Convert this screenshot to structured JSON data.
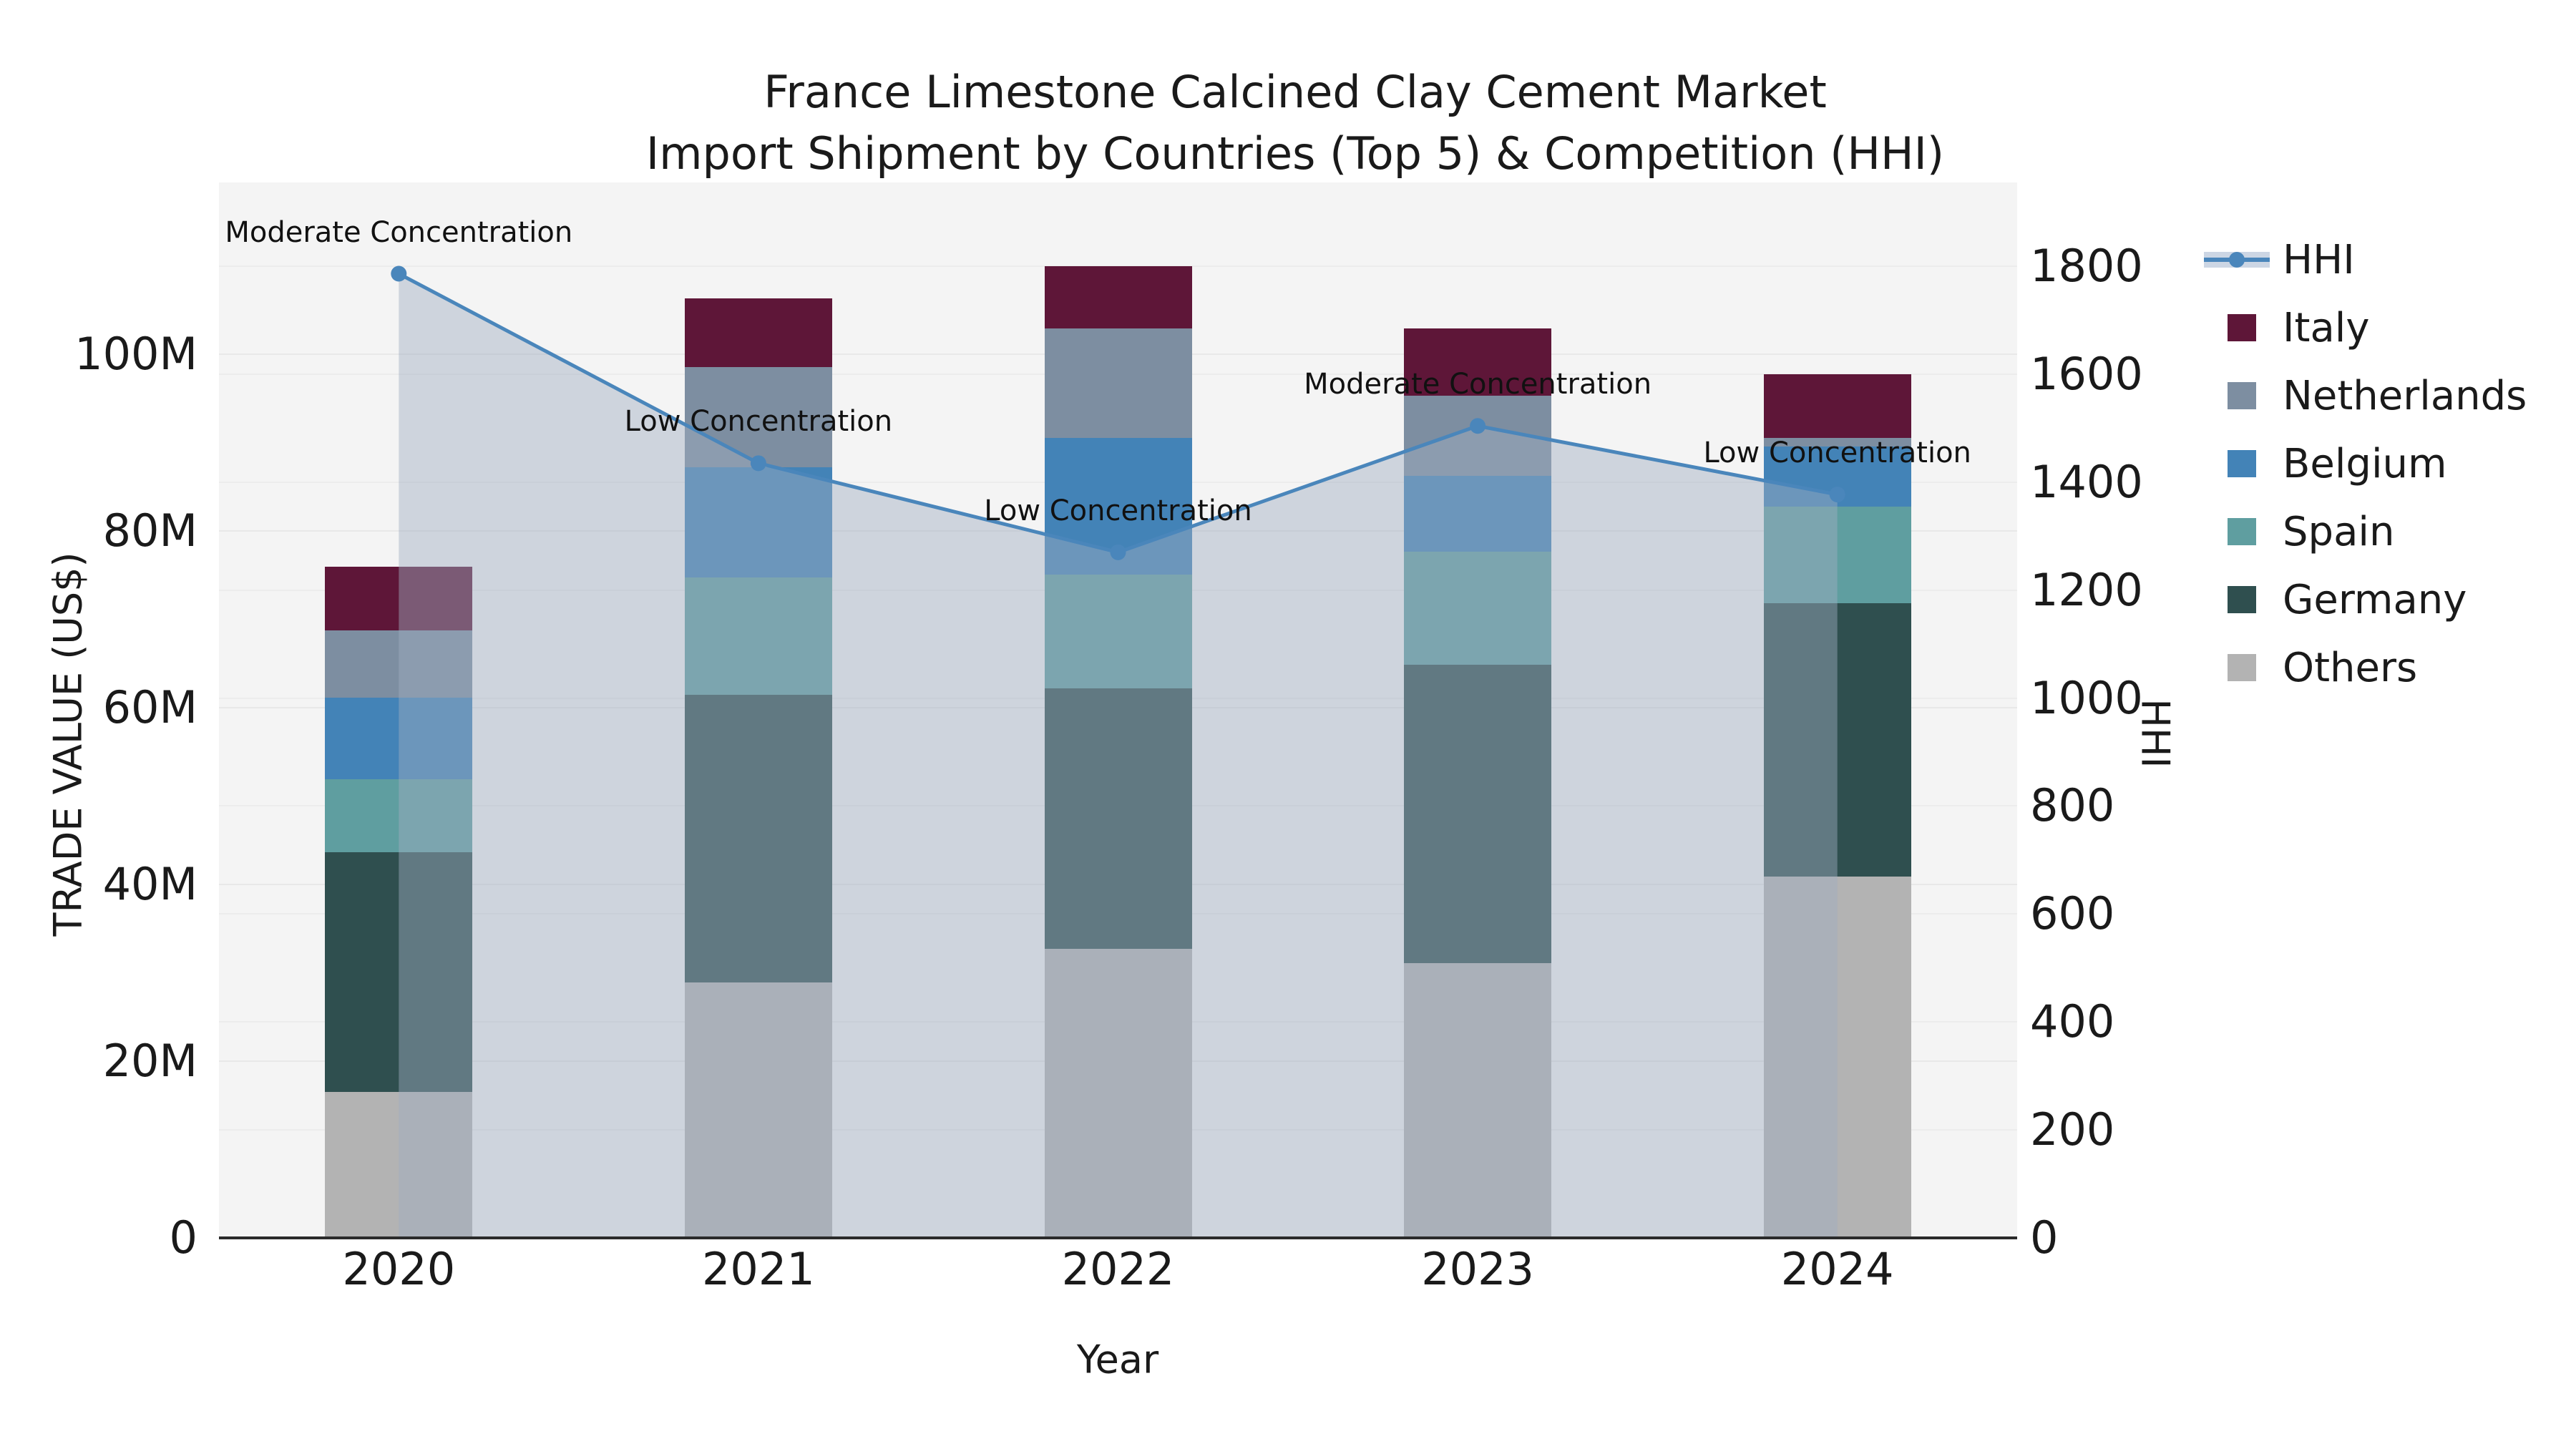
{
  "title": {
    "line1": "France Limestone Calcined Clay Cement Market",
    "line2": "Import Shipment by Countries (Top 5) & Competition (HHI)"
  },
  "axes": {
    "x_label": "Year",
    "y_left_label": "TRADE VALUE (US$)",
    "y_right_label": "HHI"
  },
  "legend": {
    "items": [
      "HHI",
      "Italy",
      "Netherlands",
      "Belgium",
      "Spain",
      "Germany",
      "Others"
    ]
  },
  "chart_data": {
    "type": "bar",
    "subtype": "stacked-bars-with-hhi-line-and-area",
    "title": "France Limestone Calcined Clay Cement Market Import Shipment by Countries (Top 5) & Competition (HHI)",
    "xlabel": "Year",
    "ylabel_left": "TRADE VALUE (US$)",
    "ylabel_right": "HHI",
    "categories": [
      "2020",
      "2021",
      "2022",
      "2023",
      "2024"
    ],
    "unit": "US$ millions",
    "series": [
      {
        "name": "Others",
        "color": "#b3b3b3",
        "values": [
          16.5,
          28.9,
          32.7,
          31.1,
          40.9
        ]
      },
      {
        "name": "Germany",
        "color": "#2f4f4f",
        "values": [
          27.1,
          32.5,
          29.5,
          33.7,
          30.9
        ]
      },
      {
        "name": "Spain",
        "color": "#5f9ea0",
        "values": [
          8.3,
          13.3,
          12.8,
          12.8,
          10.9
        ]
      },
      {
        "name": "Belgium",
        "color": "#4383b7",
        "values": [
          9.2,
          12.5,
          15.5,
          8.6,
          6.8
        ]
      },
      {
        "name": "Netherlands",
        "color": "#7d8ea1",
        "values": [
          7.6,
          11.3,
          12.4,
          9.1,
          1.0
        ]
      },
      {
        "name": "Italy",
        "color": "#5e1638",
        "values": [
          7.2,
          7.8,
          7.0,
          7.6,
          7.2
        ]
      }
    ],
    "stack_order_bottom_to_top": [
      "Others",
      "Germany",
      "Spain",
      "Belgium",
      "Netherlands",
      "Italy"
    ],
    "line_series": {
      "name": "HHI",
      "color": "#4a86bb",
      "area_fill": "rgba(159,173,194,0.45)",
      "values": [
        1786,
        1435,
        1270,
        1504,
        1377
      ]
    },
    "annotations": [
      "Moderate Concentration",
      "Low Concentration",
      "Low Concentration",
      "Moderate Concentration",
      "Low Concentration"
    ],
    "y_left_axis": {
      "tick_values": [
        0,
        20,
        40,
        60,
        80,
        100
      ],
      "tick_labels": [
        "0",
        "20M",
        "40M",
        "60M",
        "80M",
        "100M"
      ],
      "max": 119.4
    },
    "y_right_axis": {
      "tick_values": [
        0,
        200,
        400,
        600,
        800,
        1000,
        1200,
        1400,
        1600,
        1800
      ],
      "tick_labels": [
        "0",
        "200",
        "400",
        "600",
        "800",
        "1000",
        "1200",
        "1400",
        "1600",
        "1800"
      ],
      "max": 1955
    },
    "grid": true,
    "legend_position": "right-outside"
  }
}
